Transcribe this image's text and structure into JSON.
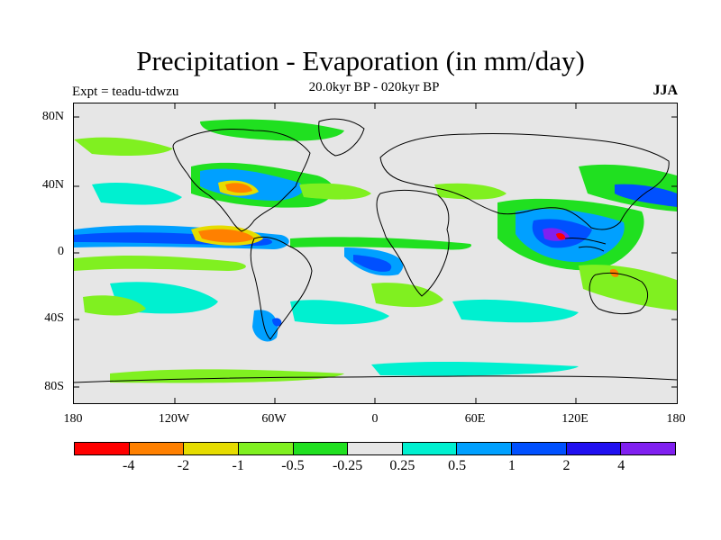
{
  "title": "Precipitation - Evaporation (in mm/day)",
  "subtitle": "20.0kyr BP - 020kyr BP",
  "experiment": "Expt = teadu-tdwzu",
  "season": "JJA",
  "lat_labels": [
    "80N",
    "40N",
    "0",
    "40S",
    "80S"
  ],
  "lon_labels": [
    "180",
    "120W",
    "60W",
    "0",
    "60E",
    "120E",
    "180"
  ],
  "colorbar": {
    "colors": [
      "#ff0000",
      "#ff8000",
      "#e6dc00",
      "#80f020",
      "#20e020",
      "#e6e6e6",
      "#00f0d0",
      "#00a0ff",
      "#0050ff",
      "#2010f0",
      "#8020f0"
    ],
    "labels": [
      "-4",
      "-2",
      "-1",
      "-0.5",
      "-0.25",
      "0.25",
      "0.5",
      "1",
      "2",
      "4"
    ]
  }
}
